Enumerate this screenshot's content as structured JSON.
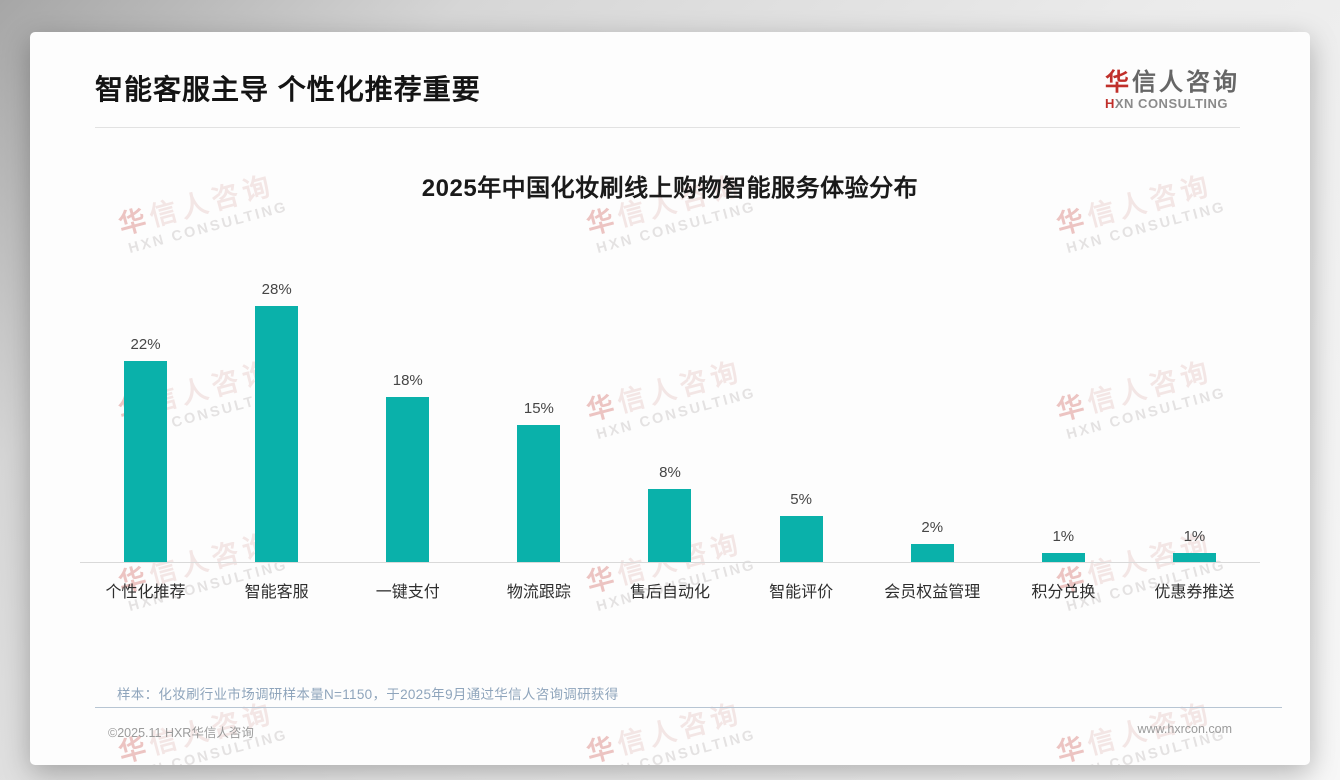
{
  "page": {
    "title": "智能客服主导 个性化推荐重要"
  },
  "logo": {
    "cn_accent": "华",
    "cn_rest": "信人咨询",
    "en_accent": "H",
    "en_rest": "XN CONSULTING"
  },
  "watermark": {
    "cn_accent": "华",
    "cn_rest": "信人咨询",
    "en": "HXN CONSULTING"
  },
  "chart_data": {
    "type": "bar",
    "title": "2025年中国化妆刷线上购物智能服务体验分布",
    "categories": [
      "个性化推荐",
      "智能客服",
      "一键支付",
      "物流跟踪",
      "售后自动化",
      "智能评价",
      "会员权益管理",
      "积分兑换",
      "优惠券推送"
    ],
    "values": [
      22,
      28,
      18,
      15,
      8,
      5,
      2,
      1,
      1
    ],
    "value_labels": [
      "22%",
      "28%",
      "18%",
      "15%",
      "8%",
      "5%",
      "2%",
      "1%",
      "1%"
    ],
    "unit": "%",
    "xlabel": "",
    "ylabel": "",
    "ylim": [
      0,
      30
    ],
    "grid": false,
    "legend": false,
    "bar_color": "#0ab1aa"
  },
  "sample_note": "样本：化妆刷行业市场调研样本量N=1150，于2025年9月通过华信人咨询调研获得",
  "footer": {
    "copyright": "©2025.11 HXR华信人咨询",
    "website": "www.hxrcon.com"
  }
}
